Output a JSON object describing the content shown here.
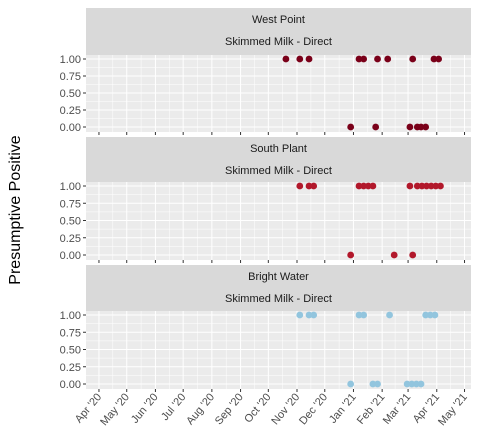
{
  "chart_data": {
    "type": "scatter",
    "ylabel": "Presumptive Positive",
    "xlabel": "",
    "x_ticks": [
      "Apr '20",
      "May '20",
      "Jun '20",
      "Jul '20",
      "Aug '20",
      "Sep '20",
      "Oct '20",
      "Nov '20",
      "Dec '20",
      "Jan '21",
      "Feb '21",
      "Mar '21",
      "Apr '21",
      "May '21"
    ],
    "y_ticks": [
      "1.00",
      "0.75",
      "0.50",
      "0.25",
      "0.00"
    ],
    "ylim": [
      0,
      1
    ],
    "grid": true,
    "facets": [
      {
        "site": "West Point",
        "method": "Skimmed Milk - Direct",
        "color": "#7a0019",
        "points": [
          {
            "date": "2020-10-20",
            "value": 1
          },
          {
            "date": "2020-11-04",
            "value": 1
          },
          {
            "date": "2020-11-14",
            "value": 1
          },
          {
            "date": "2020-12-29",
            "value": 0
          },
          {
            "date": "2021-01-07",
            "value": 1
          },
          {
            "date": "2021-01-12",
            "value": 1
          },
          {
            "date": "2021-01-25",
            "value": 0
          },
          {
            "date": "2021-01-27",
            "value": 1
          },
          {
            "date": "2021-02-07",
            "value": 1
          },
          {
            "date": "2021-03-03",
            "value": 0
          },
          {
            "date": "2021-03-06",
            "value": 1
          },
          {
            "date": "2021-03-11",
            "value": 0
          },
          {
            "date": "2021-03-15",
            "value": 0
          },
          {
            "date": "2021-03-20",
            "value": 0
          },
          {
            "date": "2021-03-29",
            "value": 1
          },
          {
            "date": "2021-04-03",
            "value": 1
          }
        ]
      },
      {
        "site": "South Plant",
        "method": "Skimmed Milk - Direct",
        "color": "#b2182b",
        "points": [
          {
            "date": "2020-11-04",
            "value": 1
          },
          {
            "date": "2020-11-14",
            "value": 1
          },
          {
            "date": "2020-11-19",
            "value": 1
          },
          {
            "date": "2020-12-29",
            "value": 0
          },
          {
            "date": "2021-01-07",
            "value": 1
          },
          {
            "date": "2021-01-12",
            "value": 1
          },
          {
            "date": "2021-01-17",
            "value": 1
          },
          {
            "date": "2021-01-22",
            "value": 1
          },
          {
            "date": "2021-02-14",
            "value": 0
          },
          {
            "date": "2021-03-03",
            "value": 1
          },
          {
            "date": "2021-03-06",
            "value": 0
          },
          {
            "date": "2021-03-11",
            "value": 1
          },
          {
            "date": "2021-03-16",
            "value": 1
          },
          {
            "date": "2021-03-21",
            "value": 1
          },
          {
            "date": "2021-03-26",
            "value": 1
          },
          {
            "date": "2021-03-31",
            "value": 1
          },
          {
            "date": "2021-04-05",
            "value": 1
          }
        ]
      },
      {
        "site": "Bright Water",
        "method": "Skimmed Milk - Direct",
        "color": "#92c5de",
        "points": [
          {
            "date": "2020-11-04",
            "value": 1
          },
          {
            "date": "2020-11-14",
            "value": 1
          },
          {
            "date": "2020-11-19",
            "value": 1
          },
          {
            "date": "2020-12-29",
            "value": 0
          },
          {
            "date": "2021-01-07",
            "value": 1
          },
          {
            "date": "2021-01-12",
            "value": 1
          },
          {
            "date": "2021-01-22",
            "value": 0
          },
          {
            "date": "2021-01-27",
            "value": 0
          },
          {
            "date": "2021-02-09",
            "value": 1
          },
          {
            "date": "2021-02-28",
            "value": 0
          },
          {
            "date": "2021-03-05",
            "value": 0
          },
          {
            "date": "2021-03-10",
            "value": 0
          },
          {
            "date": "2021-03-15",
            "value": 0
          },
          {
            "date": "2021-03-20",
            "value": 1
          },
          {
            "date": "2021-03-25",
            "value": 1
          },
          {
            "date": "2021-03-30",
            "value": 1
          }
        ]
      }
    ]
  }
}
